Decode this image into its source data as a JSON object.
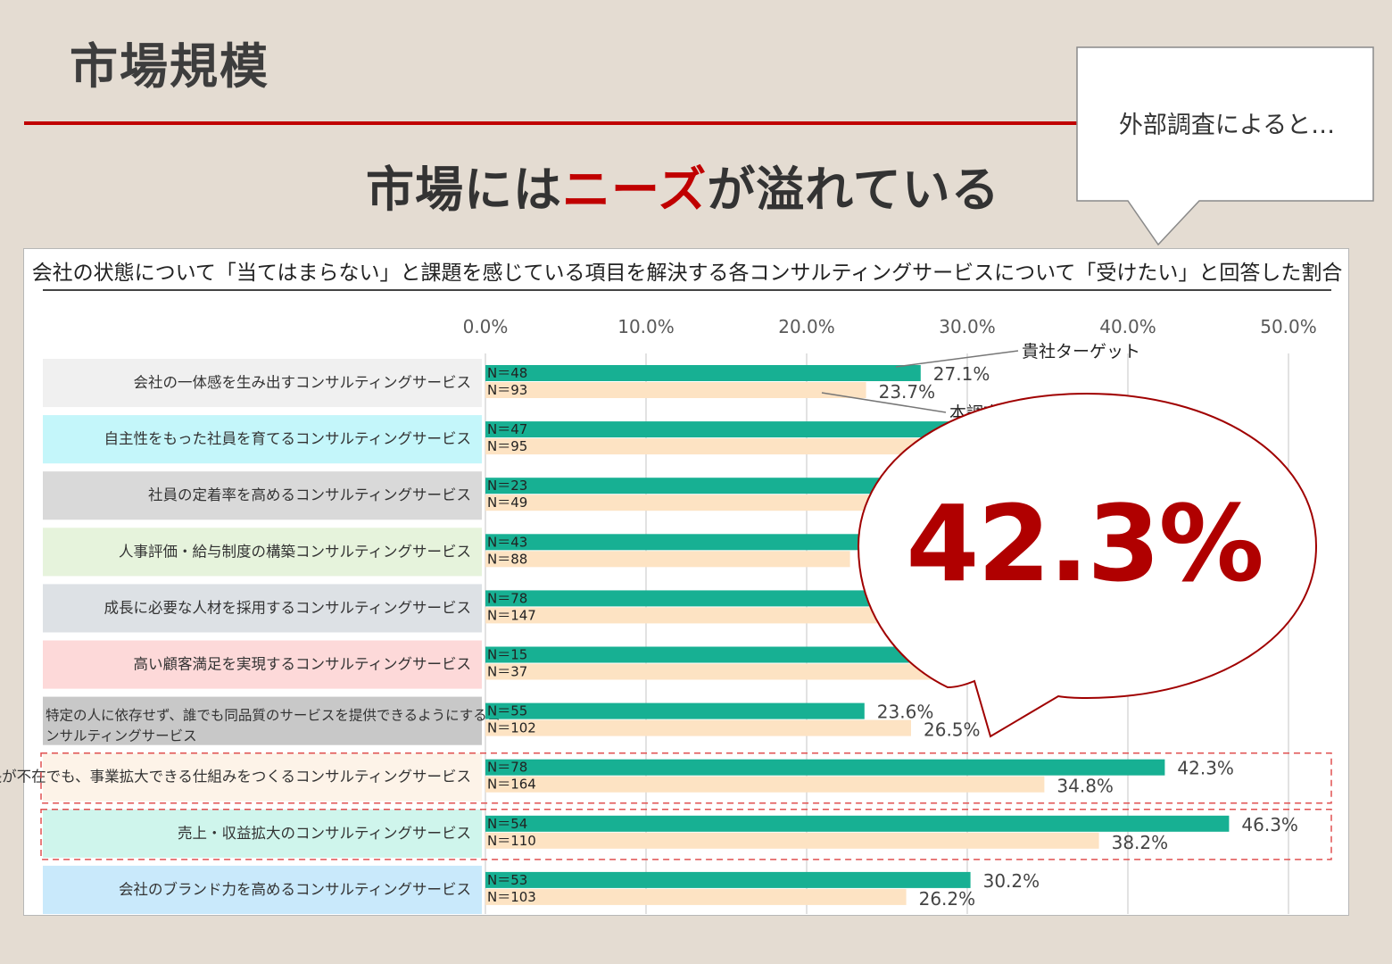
{
  "page": {
    "title": "市場規模",
    "headline_pre": "市場には",
    "headline_accent": "ニーズ",
    "headline_post": "が溢れている",
    "accent_color": "#c00000"
  },
  "callout": {
    "text": "外部調査によると…"
  },
  "highlight_bubble": {
    "value": "42.3%"
  },
  "chart_data": {
    "type": "bar",
    "orientation": "horizontal",
    "title": "会社の状態について「当てはまらない」と課題を感じている項目を解決する各コンサルティングサービスについて「受けたい」と回答した割合",
    "x_ticks": [
      "0.0%",
      "10.0%",
      "20.0%",
      "30.0%",
      "40.0%",
      "50.0%"
    ],
    "xlim": [
      0,
      50
    ],
    "grid": true,
    "series": [
      {
        "name": "貴社ターゲット",
        "color": "#17b093"
      },
      {
        "name": "本調査",
        "color": "#fde3c3"
      }
    ],
    "categories": [
      {
        "label": "会社の一体感を生み出すコンサルティングサービス",
        "bg": "#f0f0f0",
        "highlight": false,
        "target": {
          "value": 27.1,
          "label": "27.1%",
          "n": "N＝48"
        },
        "survey": {
          "value": 23.7,
          "label": "23.7%",
          "n": "N＝93"
        }
      },
      {
        "label": "自主性をもった社員を育てるコンサルティングサービス",
        "bg": "#c4f6fa",
        "highlight": false,
        "target": {
          "value": 31.5,
          "label": "",
          "n": "N＝47"
        },
        "survey": {
          "value": 28.0,
          "label": "",
          "n": "N＝95"
        }
      },
      {
        "label": "社員の定着率を高めるコンサルティングサービス",
        "bg": "#d9d9d9",
        "highlight": false,
        "target": {
          "value": 29.0,
          "label": "",
          "n": "N＝23"
        },
        "survey": {
          "value": 25.0,
          "label": "",
          "n": "N＝49"
        }
      },
      {
        "label": "人事評価・給与制度の構築コンサルティングサービス",
        "bg": "#e6f3dc",
        "highlight": false,
        "target": {
          "value": 27.0,
          "label": "",
          "n": "N＝43"
        },
        "survey": {
          "value": 22.7,
          "label": "",
          "n": "N＝88"
        }
      },
      {
        "label": "成長に必要な人材を採用するコンサルティングサービス",
        "bg": "#dde1e5",
        "highlight": false,
        "target": {
          "value": 30.0,
          "label": "",
          "n": "N＝78"
        },
        "survey": {
          "value": 26.0,
          "label": "",
          "n": "N＝147"
        }
      },
      {
        "label": "高い顧客満足を実現するコンサルティングサービス",
        "bg": "#fdd9d9",
        "highlight": false,
        "target": {
          "value": 30.0,
          "label": "",
          "n": "N＝15"
        },
        "survey": {
          "value": 30.0,
          "label": "",
          "n": "N＝37"
        }
      },
      {
        "label": "特定の人に依存せず、誰でも同品質のサービスを提供できるようにするコンサルティングサービス",
        "bg": "#c8c8c8",
        "highlight": false,
        "label_line1": "特定の人に依存せず、誰でも同品質のサービスを提供できるようにするコ",
        "label_line2": "ンサルティングサービス",
        "target": {
          "value": 23.6,
          "label": "23.6%",
          "n": "N＝55"
        },
        "survey": {
          "value": 26.5,
          "label": "26.5%",
          "n": "N＝102"
        }
      },
      {
        "label": "社長が不在でも、事業拡大できる仕組みをつくるコンサルティングサービス",
        "bg": "#fdf3e8",
        "highlight": true,
        "target": {
          "value": 42.3,
          "label": "42.3%",
          "n": "N＝78"
        },
        "survey": {
          "value": 34.8,
          "label": "34.8%",
          "n": "N＝164"
        }
      },
      {
        "label": "売上・収益拡大のコンサルティングサービス",
        "bg": "#cff5ec",
        "highlight": true,
        "target": {
          "value": 46.3,
          "label": "46.3%",
          "n": "N＝54"
        },
        "survey": {
          "value": 38.2,
          "label": "38.2%",
          "n": "N＝110"
        }
      },
      {
        "label": "会社のブランド力を高めるコンサルティングサービス",
        "bg": "#c9e9fb",
        "highlight": false,
        "target": {
          "value": 30.2,
          "label": "30.2%",
          "n": "N＝53"
        },
        "survey": {
          "value": 26.2,
          "label": "26.2%",
          "n": "N＝103"
        }
      }
    ]
  }
}
